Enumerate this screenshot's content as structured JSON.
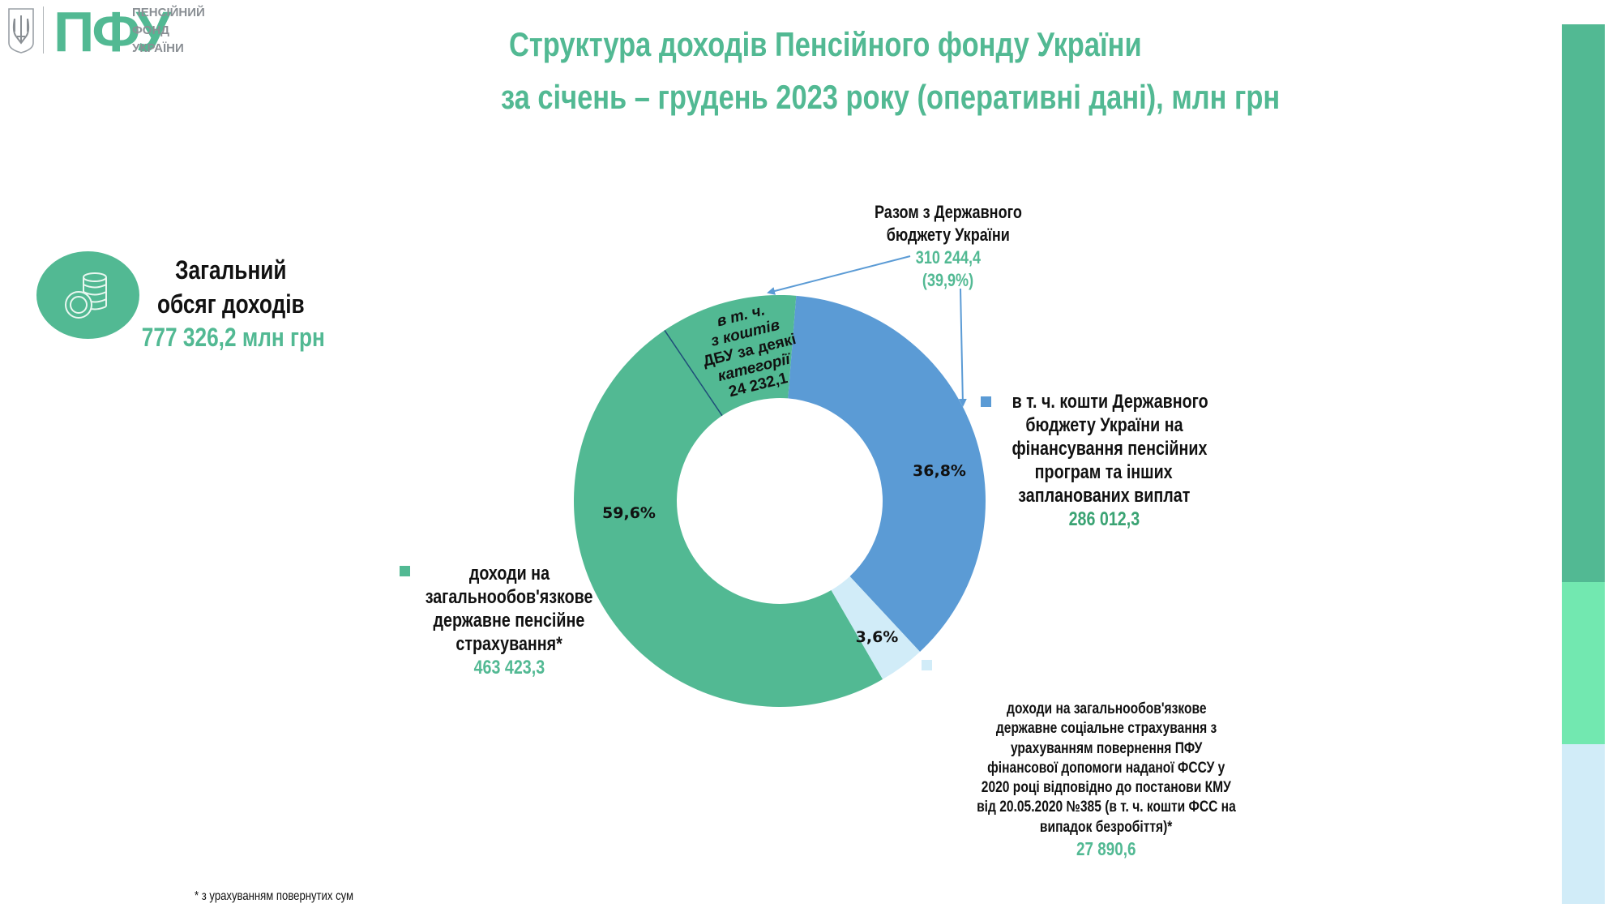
{
  "logo": {
    "abbr": "ПФУ",
    "lines": [
      "ПЕНСІЙНИЙ",
      "ФОНД",
      "УКРАЇНИ"
    ],
    "emblem_icon": "trident-icon"
  },
  "title": {
    "line1": "Структура доходів Пенсійного фонду України",
    "line2": "за січень – грудень 2023 року (оперативні дані), млн грн"
  },
  "total": {
    "icon": "coins-icon",
    "label_line1": "Загальний",
    "label_line2": "обсяг доходів",
    "value": "777 326,2 млн грн"
  },
  "annotation_top": {
    "line1": "Разом з Державного",
    "line2": "бюджету України",
    "value": "310 244,4",
    "share": "(39,9%)"
  },
  "dbu_inner": {
    "lines": [
      "в т. ч.",
      "з коштів",
      "ДБУ за деякі",
      "категорії",
      "24 232,1"
    ]
  },
  "legend": {
    "state_budget": {
      "lines": [
        "в т. ч. кошти Державного",
        "бюджету України на",
        "фінансування пенсійних",
        "програм та інших",
        "запланованих виплат"
      ],
      "value": "286 012,3"
    },
    "pension_insurance": {
      "lines": [
        "доходи на",
        "загальнообов'язкове",
        "державне пенсійне",
        "страхування*"
      ],
      "value": "463 423,3"
    },
    "social_insurance": {
      "lines": [
        "доходи на загальнообов'язкове",
        "державне соціальне страхування з",
        "урахуванням повернення ПФУ",
        "фінансової допомоги наданої ФССУ у",
        "2020 році відповідно до постанови КМУ",
        "від 20.05.2020 №385 (в т. ч. кошти ФСС на",
        "випадок безробіття)*"
      ],
      "value": "27 890,6"
    }
  },
  "footnote": "* з урахуванням повернутих сум",
  "colors": {
    "accent_green": "#52b993",
    "value_dark_green": "#3aa373",
    "blue": "#5b9bd5",
    "light_blue": "#d1ecf8",
    "mint": "#72e8b0",
    "arrow": "#5b9bd5",
    "divider_line": "#1f4e79"
  },
  "chart_data": {
    "type": "pie",
    "subtype": "donut",
    "title": "Структура доходів Пенсійного фонду України за січень – грудень 2023 року (оперативні дані), млн грн",
    "total": 777326.2,
    "categories": [
      "в т. ч. кошти Державного бюджету України на фінансування пенсійних програм та інших запланованих виплат",
      "доходи на загальнообов'язкове державне соціальне страхування (в т. ч. кошти ФСС на випадок безробіття)*",
      "доходи на загальнообов'язкове державне пенсійне страхування*"
    ],
    "values": [
      286012.3,
      27890.6,
      463423.3
    ],
    "percent_labels": [
      "36,8%",
      "3,6%",
      "59,6%"
    ],
    "percents": [
      36.8,
      3.6,
      59.6
    ],
    "colors": [
      "#5b9bd5",
      "#d1ecf8",
      "#52b993"
    ],
    "sub_segment": {
      "label": "в т. ч. з коштів ДБУ за деякі категорії",
      "value": 24232.1,
      "parent": "доходи на загальнообов'язкове державне пенсійне страхування*"
    },
    "annotation": {
      "label": "Разом з Державного бюджету України",
      "value": 310244.4,
      "percent": 39.9
    },
    "legend_position": "around"
  }
}
